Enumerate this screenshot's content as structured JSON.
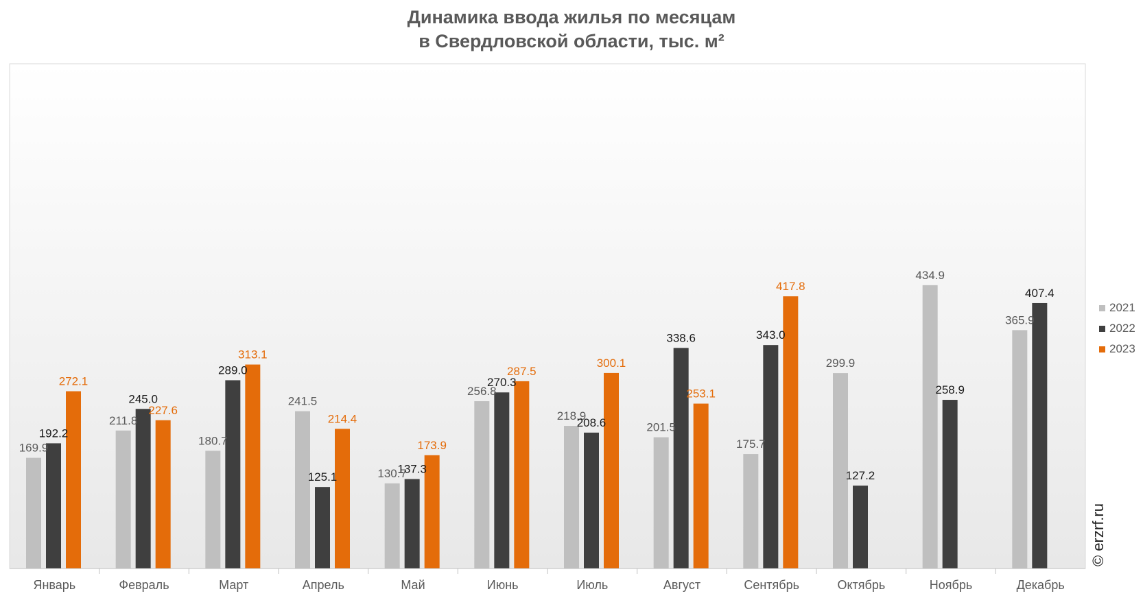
{
  "chart_data": {
    "type": "bar",
    "title_lines": [
      "Динамика ввода жилья по месяцам",
      "в Свердловской области, тыс. м²"
    ],
    "categories": [
      "Январь",
      "Февраль",
      "Март",
      "Апрель",
      "Май",
      "Июнь",
      "Июль",
      "Август",
      "Сентябрь",
      "Октябрь",
      "Ноябрь",
      "Декабрь"
    ],
    "series": [
      {
        "name": "2021",
        "color": "#bfbfbf",
        "label_color": "#595959",
        "values": [
          169.9,
          211.8,
          180.7,
          241.5,
          130.7,
          256.8,
          218.9,
          201.5,
          175.7,
          299.9,
          434.9,
          365.9
        ]
      },
      {
        "name": "2022",
        "color": "#3f3f3f",
        "label_color": "#1a1a1a",
        "values": [
          192.2,
          245.0,
          289.0,
          125.1,
          137.3,
          270.3,
          208.6,
          338.6,
          343.0,
          127.2,
          258.9,
          407.4
        ]
      },
      {
        "name": "2023",
        "color": "#e46c0a",
        "label_color": "#e46c0a",
        "values": [
          272.1,
          227.6,
          313.1,
          214.4,
          173.9,
          287.5,
          300.1,
          253.1,
          417.8,
          null,
          null,
          null
        ]
      }
    ],
    "ylim": [
      0,
      500
    ],
    "grid": false,
    "legend_position": "right"
  },
  "watermark": "© erzrf.ru"
}
